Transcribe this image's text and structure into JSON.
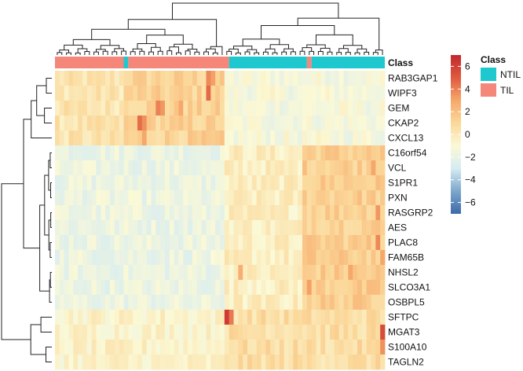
{
  "chart_data": {
    "type": "heatmap",
    "column_annotation": {
      "title": "Class",
      "legend_title": "Class",
      "levels": [
        {
          "name": "NTIL",
          "color": "#1ec8cf"
        },
        {
          "name": "TIL",
          "color": "#f4877a"
        }
      ],
      "groups": [
        {
          "class": "TIL",
          "count": 15
        },
        {
          "class": "NTIL",
          "count": 1
        },
        {
          "class": "TIL",
          "count": 22
        },
        {
          "class": "NTIL",
          "count": 17
        },
        {
          "class": "TIL",
          "count": 1
        },
        {
          "class": "NTIL",
          "count": 16
        }
      ]
    },
    "rows": [
      "RAB3GAP1",
      "WIPF3",
      "GEM",
      "CKAP2",
      "CXCL13",
      "C16orf54",
      "VCL",
      "S1PR1",
      "PXN",
      "RASGRP2",
      "AES",
      "PLAC8",
      "FAM65B",
      "NHSL2",
      "SLCO3A1",
      "OSBPL5",
      "SFTPC",
      "MGAT3",
      "S100A10",
      "TAGLN2"
    ],
    "color_scale": {
      "range": [
        -7,
        7
      ],
      "ticks": [
        "6",
        "4",
        "2",
        "0",
        "−2",
        "−4",
        "−6"
      ],
      "tick_values": [
        6,
        4,
        2,
        0,
        -2,
        -4,
        -6
      ],
      "colors": [
        "#3c6aa8",
        "#7ea7cc",
        "#d6ecf2",
        "#fbf9d6",
        "#fbd89a",
        "#f6a86a",
        "#df5a3e",
        "#c2272d"
      ]
    },
    "blocks": [
      {
        "rows": [
          0,
          4
        ],
        "cols": [
          0,
          15
        ],
        "value": 0.9
      },
      {
        "rows": [
          0,
          4
        ],
        "cols": [
          15,
          37
        ],
        "value": 1.6
      },
      {
        "rows": [
          0,
          4
        ],
        "cols": [
          37,
          72
        ],
        "value": -0.2
      },
      {
        "rows": [
          5,
          15
        ],
        "cols": [
          0,
          37
        ],
        "value": -0.6
      },
      {
        "rows": [
          5,
          15
        ],
        "cols": [
          37,
          54
        ],
        "value": 0.5
      },
      {
        "rows": [
          5,
          15
        ],
        "cols": [
          54,
          72
        ],
        "value": 1.8
      },
      {
        "rows": [
          16,
          19
        ],
        "cols": [
          0,
          37
        ],
        "value": 0.3
      },
      {
        "rows": [
          16,
          19
        ],
        "cols": [
          37,
          72
        ],
        "value": 1.2
      }
    ],
    "highlights": [
      {
        "row": 0,
        "col": 33,
        "value": 3.8
      },
      {
        "row": 1,
        "col": 33,
        "value": 4.6
      },
      {
        "row": 0,
        "col": 34,
        "value": 3.2
      },
      {
        "row": 2,
        "col": 22,
        "value": 4.0
      },
      {
        "row": 2,
        "col": 23,
        "value": 3.4
      },
      {
        "row": 3,
        "col": 18,
        "value": 4.5
      },
      {
        "row": 3,
        "col": 19,
        "value": 3.6
      },
      {
        "row": 4,
        "col": 19,
        "value": 3.0
      },
      {
        "row": 2,
        "col": 27,
        "value": 3.0
      },
      {
        "row": 16,
        "col": 37,
        "value": 6.2
      },
      {
        "row": 16,
        "col": 38,
        "value": 4.2
      },
      {
        "row": 17,
        "col": 71,
        "value": 5.5
      },
      {
        "row": 18,
        "col": 71,
        "value": 3.6
      },
      {
        "row": 9,
        "col": 70,
        "value": 3.4
      },
      {
        "row": 11,
        "col": 70,
        "value": 3.8
      },
      {
        "row": 12,
        "col": 71,
        "value": 3.0
      },
      {
        "row": 13,
        "col": 40,
        "value": 2.8
      },
      {
        "row": 6,
        "col": 69,
        "value": 3.0
      },
      {
        "row": 14,
        "col": 55,
        "value": 3.2
      },
      {
        "row": 13,
        "col": 64,
        "value": 3.0
      }
    ]
  }
}
